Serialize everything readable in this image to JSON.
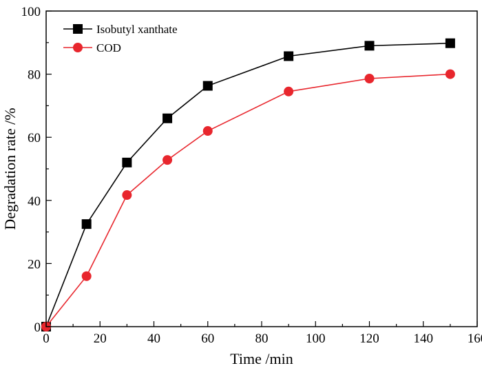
{
  "chart_data": {
    "type": "line",
    "title": "",
    "xlabel": "Time /min",
    "ylabel": "Degradation rate /%",
    "xlim": [
      0,
      160
    ],
    "ylim": [
      0,
      100
    ],
    "xticks": [
      0,
      20,
      40,
      60,
      80,
      100,
      120,
      140,
      160
    ],
    "yticks": [
      0,
      20,
      40,
      60,
      80,
      100
    ],
    "grid": false,
    "legend_position": "top-left",
    "series": [
      {
        "name": "Isobutyl xanthate",
        "marker": "square",
        "color": "#000000",
        "x": [
          0,
          15,
          30,
          45,
          60,
          90,
          120,
          150
        ],
        "y": [
          0,
          32.5,
          52,
          66,
          76.3,
          85.7,
          89,
          89.8
        ]
      },
      {
        "name": "COD",
        "marker": "circle",
        "color": "#e8262d",
        "x": [
          0,
          15,
          30,
          45,
          60,
          90,
          120,
          150
        ],
        "y": [
          0,
          16,
          41.7,
          52.8,
          62,
          74.5,
          78.6,
          80
        ]
      }
    ]
  }
}
